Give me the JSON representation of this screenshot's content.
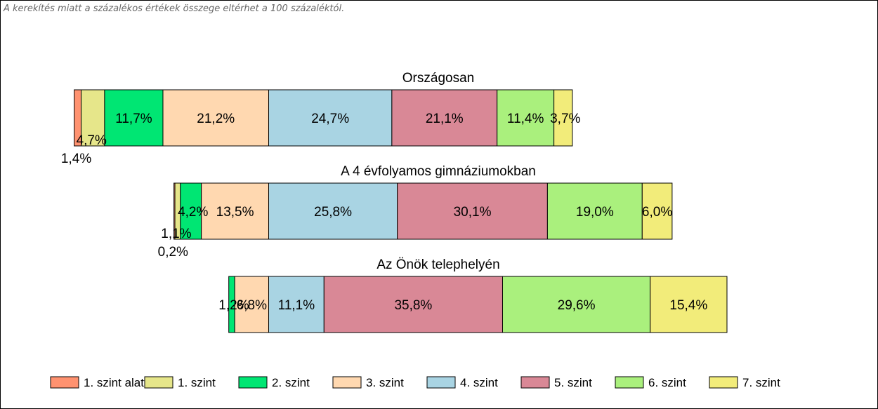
{
  "note": "A kerekítés miatt a  százalékos értékek összege eltérhet a 100 százaléktól.",
  "chart_data": {
    "type": "bar",
    "orientation": "horizontal",
    "stacked": true,
    "grid": false,
    "legend_position": "bottom",
    "levels": [
      {
        "name": "1. szint alatti",
        "color": "#ff9270"
      },
      {
        "name": "1. szint",
        "color": "#e6e68a"
      },
      {
        "name": "2. szint",
        "color": "#00e673"
      },
      {
        "name": "3. szint",
        "color": "#ffd8b0"
      },
      {
        "name": "4. szint",
        "color": "#a9d4e3"
      },
      {
        "name": "5. szint",
        "color": "#d98896"
      },
      {
        "name": "6. szint",
        "color": "#aaf07d"
      },
      {
        "name": "7. szint",
        "color": "#f2ec7a"
      }
    ],
    "groups": [
      {
        "title": "Országosan",
        "values": [
          1.4,
          4.7,
          11.7,
          21.2,
          24.7,
          21.1,
          11.4,
          3.7
        ],
        "labels": [
          "1,4%",
          "4,7%",
          "11,7%",
          "21,2%",
          "24,7%",
          "21,1%",
          "11,4%",
          "3,7%"
        ]
      },
      {
        "title": "A 4 évfolyamos gimnáziumokban",
        "values": [
          0.2,
          1.1,
          4.2,
          13.5,
          25.8,
          30.1,
          19.0,
          6.0
        ],
        "labels": [
          "0,2%",
          "1,1%",
          "4,2%",
          "13,5%",
          "25,8%",
          "30,1%",
          "19,0%",
          "6,0%"
        ]
      },
      {
        "title": "Az Önök telephelyén",
        "values": [
          0,
          0,
          1.2,
          6.8,
          11.1,
          35.8,
          29.6,
          15.4
        ],
        "labels": [
          "",
          "",
          "1,2%",
          "6,8%",
          "11,1%",
          "35,8%",
          "29,6%",
          "15,4%"
        ]
      }
    ],
    "alignment_boundary": "3. szint / 4. szint"
  }
}
